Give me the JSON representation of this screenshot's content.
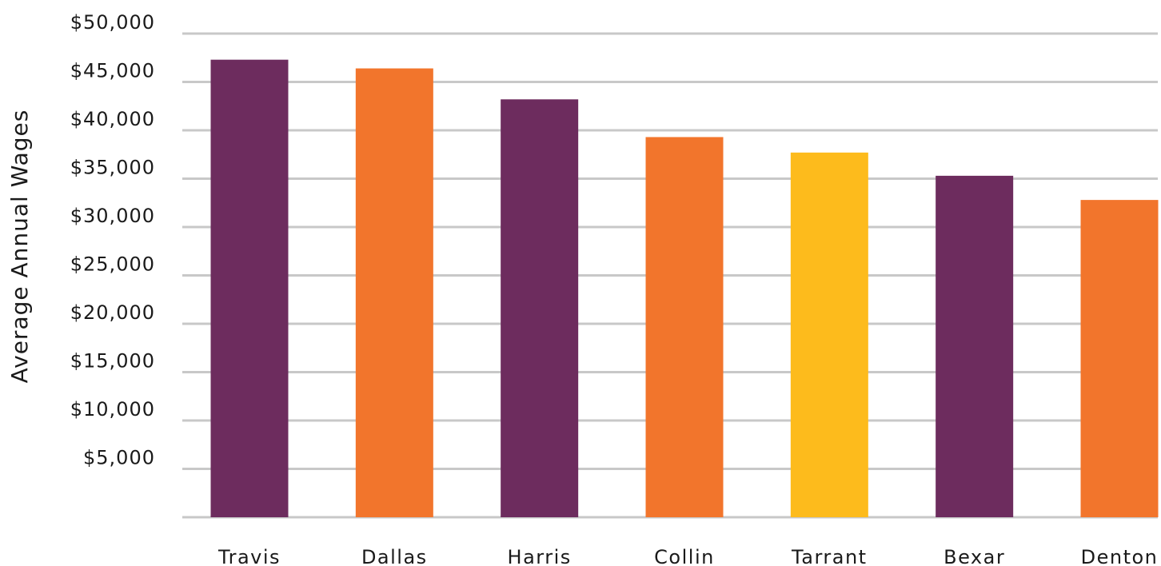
{
  "chart_data": {
    "type": "bar",
    "ylabel": "Average Annual Wages",
    "xlabel": "",
    "categories": [
      "Travis",
      "Dallas",
      "Harris",
      "Collin",
      "Tarrant",
      "Bexar",
      "Denton"
    ],
    "values": [
      47300,
      46400,
      43200,
      39300,
      37700,
      35300,
      32800
    ],
    "bar_colors": [
      "#6d2c5e",
      "#f2752c",
      "#6d2c5e",
      "#f2752c",
      "#fdbb1c",
      "#6d2c5e",
      "#f2752c"
    ],
    "ylim": [
      0,
      50000
    ],
    "yticks": [
      5000,
      10000,
      15000,
      20000,
      25000,
      30000,
      35000,
      40000,
      45000,
      50000
    ],
    "ytick_labels": [
      "$5,000",
      "$10,000",
      "$15,000",
      "$20,000",
      "$25,000",
      "$30,000",
      "$35,000",
      "$40,000",
      "$45,000",
      "$50,000"
    ],
    "grid": true,
    "legend": "none"
  }
}
